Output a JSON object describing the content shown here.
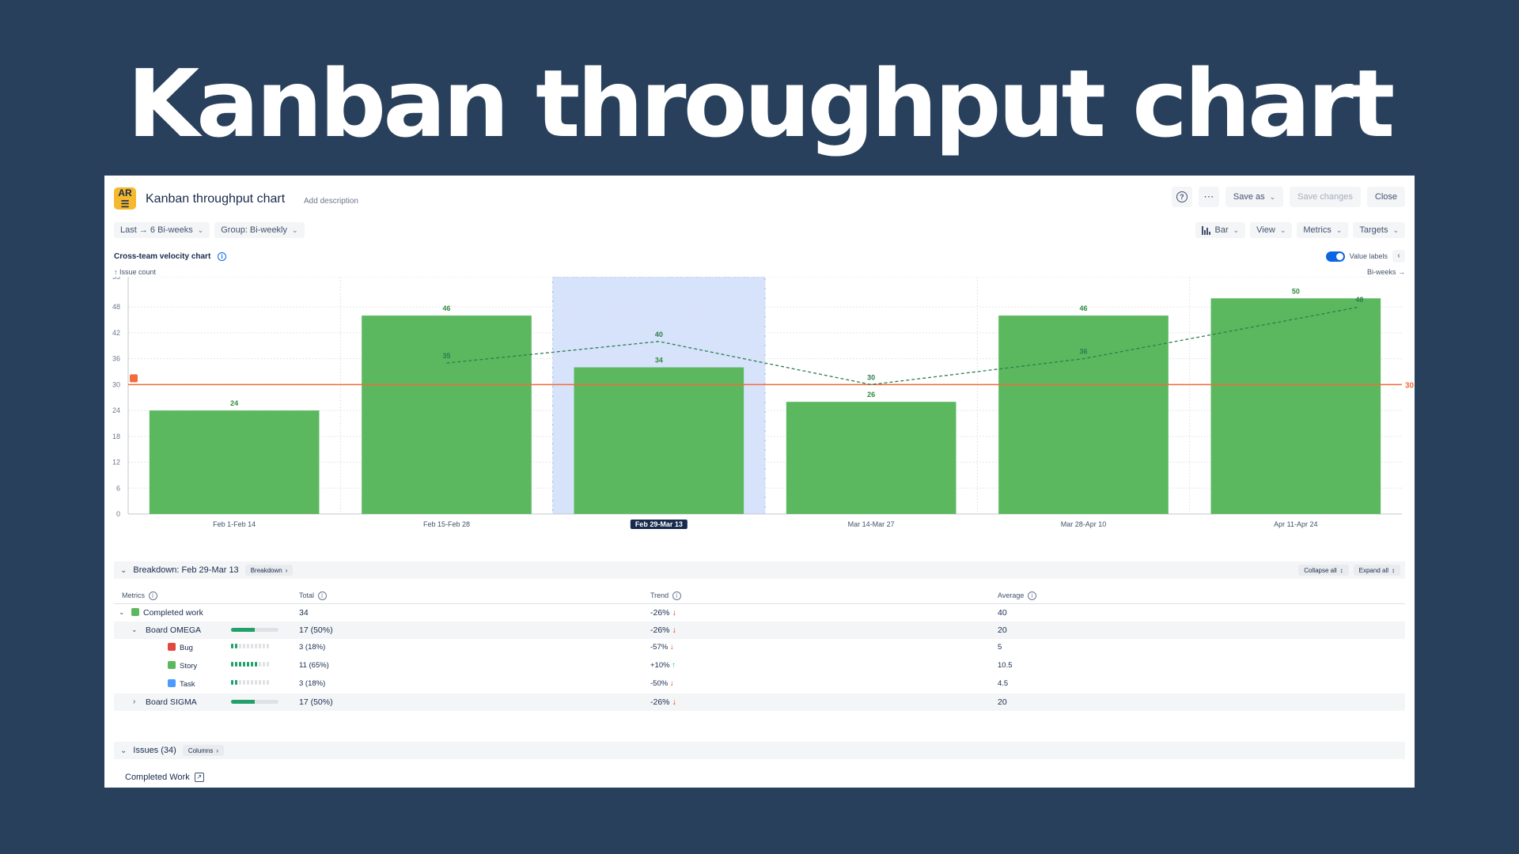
{
  "hero_title": "Kanban throughput chart",
  "header": {
    "logo_text_top": "AR",
    "logo_text_bottom": "☰",
    "title": "Kanban throughput chart",
    "add_description": "Add description",
    "help_icon": "?",
    "more_icon": "⋯",
    "save_as": "Save as",
    "save_changes": "Save changes",
    "close": "Close"
  },
  "toolbar": {
    "range": "Last → 6 Bi-weeks",
    "group": "Group: Bi-weekly",
    "chart_type": "Bar",
    "view": "View",
    "metrics": "Metrics",
    "targets": "Targets"
  },
  "chart_panel": {
    "title": "Cross-team velocity chart",
    "y_axis_label": "↑ Issue count",
    "x_axis_label": "Bi-weeks →",
    "value_labels": "Value labels",
    "collapse": "‹"
  },
  "chart_data": {
    "type": "bar",
    "categories": [
      "Feb 1-Feb 14",
      "Feb 15-Feb 28",
      "Feb 29-Mar 13",
      "Mar 14-Mar 27",
      "Mar 28-Apr 10",
      "Apr 11-Apr 24"
    ],
    "selected_category": "Feb 29-Mar 13",
    "series": [
      {
        "type": "bar",
        "values": [
          24,
          46,
          34,
          26,
          46,
          50
        ],
        "color": "#5cb85f"
      },
      {
        "type": "line",
        "style": "dashed",
        "values": [
          null,
          35,
          40,
          30,
          36,
          48
        ],
        "color": "#2e7d4f"
      }
    ],
    "target": {
      "value": 30,
      "label": "30",
      "color": "#f26b3a"
    },
    "y_ticks": [
      0,
      6,
      12,
      18,
      24,
      30,
      36,
      42,
      48,
      55
    ],
    "ylim": [
      0,
      55
    ],
    "grid": true,
    "highlight_color": "#d6e3fb"
  },
  "breakdown": {
    "title": "Breakdown: Feb 29-Mar 13",
    "chip": "Breakdown",
    "collapse_all": "Collapse all",
    "expand_all": "Expand all",
    "headers": {
      "metrics": "Metrics",
      "total": "Total",
      "trend": "Trend",
      "average": "Average"
    },
    "rows": [
      {
        "name": "Completed work",
        "total": "34",
        "trend": "-26%",
        "dir": "down",
        "avg": "40"
      },
      {
        "name": "Board OMEGA",
        "total": "17 (50%)",
        "trend": "-26%",
        "dir": "down",
        "avg": "20",
        "progress": 0.5
      },
      {
        "name": "Bug",
        "total": "3 (18%)",
        "trend": "-57%",
        "dir": "down",
        "avg": "5",
        "share": 0.18,
        "color": "#e2483d"
      },
      {
        "name": "Story",
        "total": "11 (65%)",
        "trend": "+10%",
        "dir": "up",
        "avg": "10.5",
        "share": 0.65,
        "color": "#5cb85f"
      },
      {
        "name": "Task",
        "total": "3 (18%)",
        "trend": "-50%",
        "dir": "down",
        "avg": "4.5",
        "share": 0.18,
        "color": "#4c9aff"
      },
      {
        "name": "Board SIGMA",
        "total": "17 (50%)",
        "trend": "-26%",
        "dir": "down",
        "avg": "20",
        "progress": 0.5
      }
    ]
  },
  "issues": {
    "title": "Issues (34)",
    "chip": "Columns",
    "completed_work": "Completed Work"
  },
  "icons": {
    "arrow_down": "↓",
    "arrow_up": "↑",
    "chevron_down": "⌄",
    "chevron_right": "›",
    "info": "i",
    "external_link": "↗",
    "sort": "↕"
  }
}
